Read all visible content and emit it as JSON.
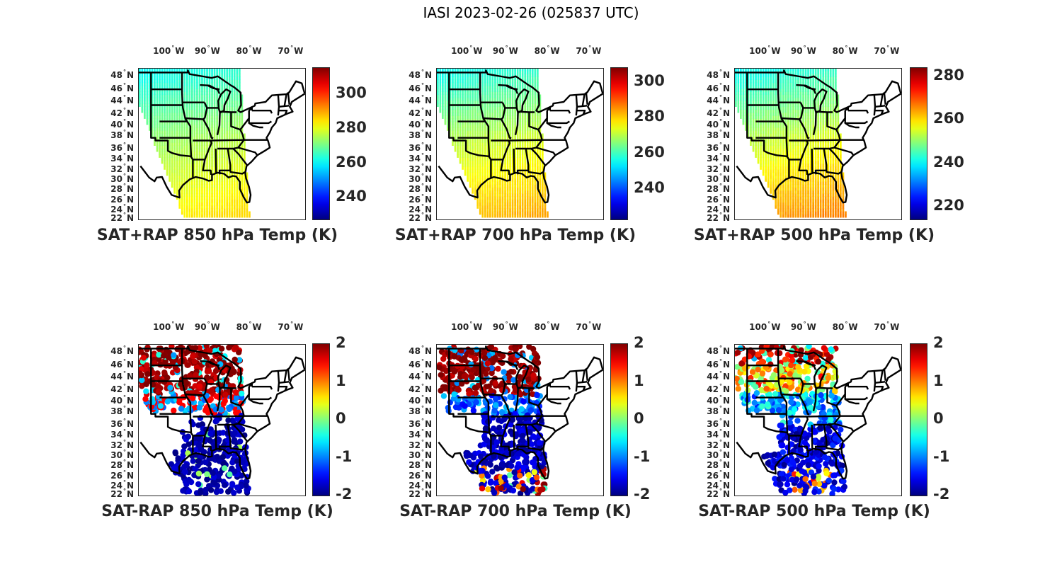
{
  "figure": {
    "title": "IASI 2023-02-26 (025837 UTC)"
  },
  "chart_data": [
    {
      "type": "heatmap",
      "title": "SAT+RAP 850 hPa Temp (K)",
      "variable": "Temperature",
      "level_hPa": 850,
      "units": "K",
      "colormap": "jet",
      "clim": [
        227.5,
        315
      ],
      "colorbar_ticks": [
        240,
        260,
        280,
        300
      ],
      "lon_ticks": [
        "100° W",
        "90° W",
        "80° W",
        "70° W"
      ],
      "lat_ticks": [
        "48° N",
        "46° N",
        "44° N",
        "42° N",
        "40° N",
        "38° N",
        "36° N",
        "34° N",
        "32° N",
        "30° N",
        "28° N",
        "26° N",
        "24° N",
        "22° N"
      ],
      "field_summary": {
        "north": 262,
        "central": 275,
        "south": 284
      },
      "grid": false
    },
    {
      "type": "heatmap",
      "title": "SAT+RAP 700 hPa Temp (K)",
      "variable": "Temperature",
      "level_hPa": 700,
      "units": "K",
      "colormap": "jet",
      "clim": [
        223,
        308
      ],
      "colorbar_ticks": [
        240,
        260,
        280,
        300
      ],
      "lon_ticks": [
        "100° W",
        "90° W",
        "80° W",
        "70° W"
      ],
      "lat_ticks": [
        "48° N",
        "46° N",
        "44° N",
        "42° N",
        "40° N",
        "38° N",
        "36° N",
        "34° N",
        "32° N",
        "30° N",
        "28° N",
        "26° N",
        "24° N",
        "22° N"
      ],
      "field_summary": {
        "north": 257,
        "central": 272,
        "south": 282
      },
      "grid": false
    },
    {
      "type": "heatmap",
      "title": "SAT+RAP 500 hPa Temp (K)",
      "variable": "Temperature",
      "level_hPa": 500,
      "units": "K",
      "colormap": "jet",
      "clim": [
        214,
        284
      ],
      "colorbar_ticks": [
        220,
        240,
        260,
        280
      ],
      "lon_ticks": [
        "100° W",
        "90° W",
        "80° W",
        "70° W"
      ],
      "lat_ticks": [
        "48° N",
        "46° N",
        "44° N",
        "42° N",
        "40° N",
        "38° N",
        "36° N",
        "34° N",
        "32° N",
        "30° N",
        "28° N",
        "26° N",
        "24° N",
        "22° N"
      ],
      "field_summary": {
        "north": 242,
        "central": 255,
        "south": 265
      },
      "grid": false
    },
    {
      "type": "heatmap",
      "title": "SAT-RAP 850 hPa Temp (K)",
      "variable": "Temperature difference",
      "level_hPa": 850,
      "units": "K",
      "colormap": "jet",
      "clim": [
        -2,
        2
      ],
      "colorbar_ticks": [
        -2,
        -1,
        0,
        1,
        2
      ],
      "lon_ticks": [
        "100° W",
        "90° W",
        "80° W",
        "70° W"
      ],
      "lat_ticks": [
        "48° N",
        "46° N",
        "44° N",
        "42° N",
        "40° N",
        "38° N",
        "36° N",
        "34° N",
        "32° N",
        "30° N",
        "28° N",
        "26° N",
        "24° N",
        "22° N"
      ],
      "field_summary": {
        "north": 2,
        "central": -1,
        "south": -2
      },
      "grid": false
    },
    {
      "type": "heatmap",
      "title": "SAT-RAP 700 hPa Temp (K)",
      "variable": "Temperature difference",
      "level_hPa": 700,
      "units": "K",
      "colormap": "jet",
      "clim": [
        -2,
        2
      ],
      "colorbar_ticks": [
        -2,
        -1,
        0,
        1,
        2
      ],
      "lon_ticks": [
        "100° W",
        "90° W",
        "80° W",
        "70° W"
      ],
      "lat_ticks": [
        "48° N",
        "46° N",
        "44° N",
        "42° N",
        "40° N",
        "38° N",
        "36° N",
        "34° N",
        "32° N",
        "30° N",
        "28° N",
        "26° N",
        "24° N",
        "22° N"
      ],
      "field_summary": {
        "north": 2,
        "central": -1.5,
        "south": -1.5
      },
      "grid": false
    },
    {
      "type": "heatmap",
      "title": "SAT-RAP 500 hPa Temp (K)",
      "variable": "Temperature difference",
      "level_hPa": 500,
      "units": "K",
      "colormap": "jet",
      "clim": [
        -2,
        2
      ],
      "colorbar_ticks": [
        -2,
        -1,
        0,
        1,
        2
      ],
      "lon_ticks": [
        "100° W",
        "90° W",
        "80° W",
        "70° W"
      ],
      "lat_ticks": [
        "48° N",
        "46° N",
        "44° N",
        "42° N",
        "40° N",
        "38° N",
        "36° N",
        "34° N",
        "32° N",
        "30° N",
        "28° N",
        "26° N",
        "24° N",
        "22° N"
      ],
      "field_summary": {
        "north": 1.5,
        "central": -0.5,
        "south": -2
      },
      "grid": false
    }
  ]
}
